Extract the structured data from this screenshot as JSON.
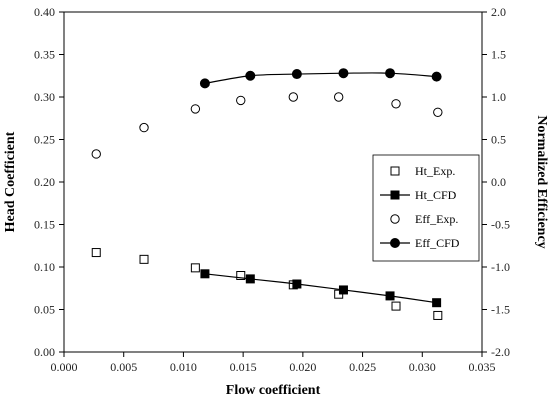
{
  "chart_data": {
    "type": "scatter",
    "xlabel": "Flow coefficient",
    "ylabel": "Head Coefficient",
    "y2label": "Normalized Efficiency",
    "xlim": [
      0.0,
      0.035
    ],
    "ylim": [
      0.0,
      0.4
    ],
    "y2lim": [
      -2.0,
      2.0
    ],
    "x_ticks": [
      "0.000",
      "0.005",
      "0.010",
      "0.015",
      "0.020",
      "0.025",
      "0.030",
      "0.035"
    ],
    "y_ticks": [
      "0.00",
      "0.05",
      "0.10",
      "0.15",
      "0.20",
      "0.25",
      "0.30",
      "0.35",
      "0.40"
    ],
    "y2_ticks": [
      "-2.0",
      "-1.5",
      "-1.0",
      "-0.5",
      "0.0",
      "0.5",
      "1.0",
      "1.5",
      "2.0"
    ],
    "grid": false,
    "legend_position": "right",
    "series": [
      {
        "name": "Ht_Exp.",
        "axis": "left",
        "marker": "square-open",
        "line": false,
        "x": [
          0.0027,
          0.0067,
          0.011,
          0.0148,
          0.0192,
          0.023,
          0.0278,
          0.0313
        ],
        "y": [
          0.117,
          0.109,
          0.099,
          0.09,
          0.079,
          0.068,
          0.054,
          0.043
        ]
      },
      {
        "name": "Ht_CFD",
        "axis": "left",
        "marker": "square-filled",
        "line": true,
        "x": [
          0.0118,
          0.0156,
          0.0195,
          0.0234,
          0.0273,
          0.0312
        ],
        "y": [
          0.092,
          0.086,
          0.08,
          0.073,
          0.066,
          0.058
        ]
      },
      {
        "name": "Eff_Exp.",
        "axis": "right",
        "marker": "circle-open",
        "line": false,
        "x": [
          0.0027,
          0.0067,
          0.011,
          0.0148,
          0.0192,
          0.023,
          0.0278,
          0.0313
        ],
        "y": [
          0.33,
          0.64,
          0.86,
          0.96,
          1.0,
          1.0,
          0.92,
          0.82
        ]
      },
      {
        "name": "Eff_CFD",
        "axis": "right",
        "marker": "circle-filled",
        "line": true,
        "x": [
          0.0118,
          0.0156,
          0.0195,
          0.0234,
          0.0273,
          0.0312
        ],
        "y": [
          1.16,
          1.25,
          1.27,
          1.28,
          1.28,
          1.24
        ]
      }
    ],
    "colors": {
      "marker": "#000000",
      "axis": "#000000"
    }
  }
}
